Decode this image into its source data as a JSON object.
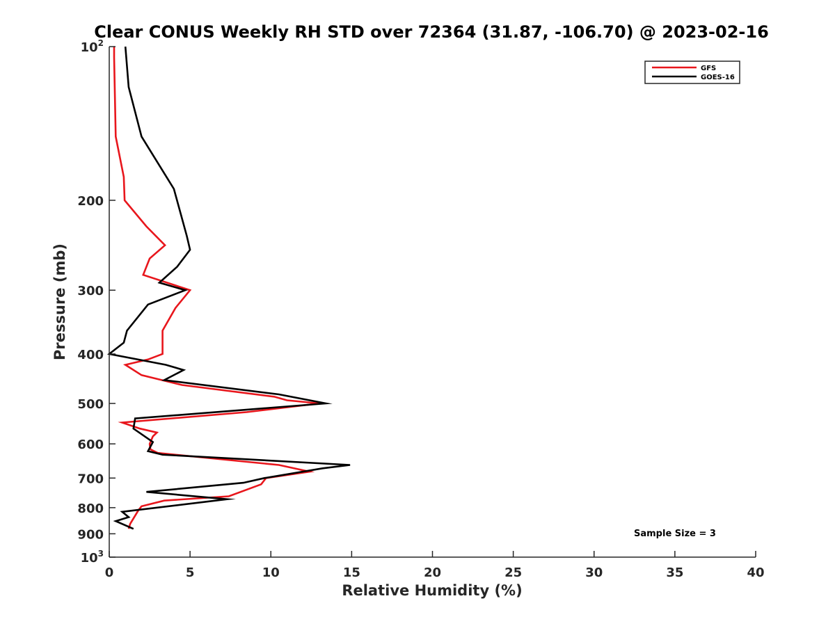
{
  "chart_data": {
    "type": "line",
    "title": "Clear CONUS Weekly RH STD over 72364 (31.87, -106.70) @ 2023-02-16",
    "xlabel": "Relative Humidity (%)",
    "ylabel": "Pressure (mb)",
    "xlim": [
      0,
      40
    ],
    "ylim": [
      1000,
      100
    ],
    "y_scale": "log",
    "y_reversed": true,
    "grid": false,
    "legend_position": "top-right",
    "x_ticks": [
      {
        "value": 0,
        "label": "0"
      },
      {
        "value": 5,
        "label": "5"
      },
      {
        "value": 10,
        "label": "10"
      },
      {
        "value": 15,
        "label": "15"
      },
      {
        "value": 20,
        "label": "20"
      },
      {
        "value": 25,
        "label": "25"
      },
      {
        "value": 30,
        "label": "30"
      },
      {
        "value": 35,
        "label": "35"
      },
      {
        "value": 40,
        "label": "40"
      }
    ],
    "y_ticks": [
      {
        "value": 100,
        "label": "10",
        "exp": "2"
      },
      {
        "value": 200,
        "label": "200",
        "exp": ""
      },
      {
        "value": 300,
        "label": "300",
        "exp": ""
      },
      {
        "value": 400,
        "label": "400",
        "exp": ""
      },
      {
        "value": 500,
        "label": "500",
        "exp": ""
      },
      {
        "value": 600,
        "label": "600",
        "exp": ""
      },
      {
        "value": 700,
        "label": "700",
        "exp": ""
      },
      {
        "value": 800,
        "label": "800",
        "exp": ""
      },
      {
        "value": 900,
        "label": "900",
        "exp": ""
      },
      {
        "value": 1000,
        "label": "10",
        "exp": "3"
      }
    ],
    "series": [
      {
        "name": "GFS",
        "color": "#e8161c",
        "x": [
          0.3,
          0.3,
          0.4,
          0.9,
          0.95,
          2.3,
          3.45,
          2.5,
          2.1,
          5.0,
          4.1,
          3.3,
          3.3,
          3.3,
          2.4,
          1.0,
          2.0,
          4.5,
          10.2,
          11.0,
          13.0,
          8.5,
          0.8,
          1.9,
          2.95,
          2.7,
          2.5,
          2.55,
          3.0,
          10.5,
          12.4,
          9.7,
          9.4,
          7.4,
          3.4,
          2.0,
          1.8,
          1.3,
          1.2
        ],
        "y": [
          100,
          105,
          150,
          180,
          200,
          225,
          245,
          260,
          280,
          300,
          325,
          360,
          390,
          400,
          410,
          420,
          440,
          460,
          485,
          493,
          500,
          520,
          545,
          560,
          570,
          580,
          600,
          615,
          625,
          660,
          680,
          700,
          720,
          760,
          775,
          795,
          810,
          860,
          880
        ]
      },
      {
        "name": "GOES-16",
        "color": "#000000",
        "x": [
          1.0,
          1.2,
          2.0,
          4.0,
          4.8,
          5.0,
          4.2,
          3.1,
          4.7,
          2.4,
          1.1,
          0.9,
          0.0,
          3.5,
          4.6,
          3.4,
          10.5,
          13.4,
          1.6,
          1.5,
          2.7,
          2.4,
          3.3,
          14.9,
          13.2,
          9.6,
          8.3,
          2.3,
          7.3,
          0.8,
          1.2,
          0.4,
          1.5
        ],
        "y": [
          100,
          120,
          150,
          190,
          235,
          250,
          270,
          290,
          300,
          320,
          360,
          380,
          400,
          420,
          430,
          450,
          480,
          500,
          535,
          560,
          595,
          620,
          630,
          660,
          670,
          700,
          715,
          745,
          770,
          815,
          835,
          850,
          880
        ]
      }
    ],
    "annotations": [
      "Sample Size = 3"
    ]
  }
}
